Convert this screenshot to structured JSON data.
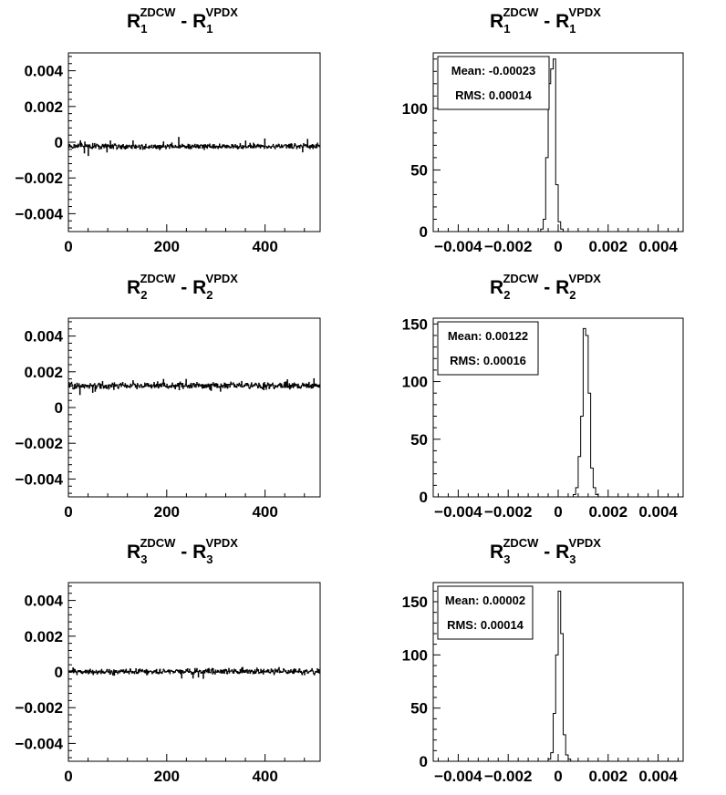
{
  "chart_data": [
    {
      "type": "line",
      "title": {
        "base": "R",
        "sub": "1",
        "sup": "ZDCW",
        "sep": " - ",
        "base2": "R",
        "sub2": "1",
        "sup2": "VPDX"
      },
      "xlim": [
        0,
        512
      ],
      "ylim": [
        -0.005,
        0.005
      ],
      "xticks": [
        0,
        200,
        400
      ],
      "xtick_labels": [
        "0",
        "200",
        "400"
      ],
      "yticks": [
        -0.004,
        -0.002,
        0,
        0.002,
        0.004
      ],
      "ytick_labels": [
        "−0.004",
        "−0.002",
        "0",
        "0.002",
        "0.004"
      ],
      "series": [
        {
          "mean": -0.00023,
          "noise": 0.00014
        }
      ]
    },
    {
      "type": "histogram",
      "title": {
        "base": "R",
        "sub": "1",
        "sup": "ZDCW",
        "sep": " - ",
        "base2": "R",
        "sub2": "1",
        "sup2": "VPDX"
      },
      "xlim": [
        -0.005,
        0.005
      ],
      "ylim": [
        0,
        145
      ],
      "xticks": [
        -0.004,
        -0.002,
        0,
        0.002,
        0.004
      ],
      "xtick_labels": [
        "−0.004",
        "−0.002",
        "0",
        "0.002",
        "0.004"
      ],
      "yticks": [
        0,
        50,
        100
      ],
      "ytick_labels": [
        "0",
        "50",
        "100"
      ],
      "bin_width": 0.0001,
      "bins": [
        [
          -0.0007,
          2
        ],
        [
          -0.0006,
          10
        ],
        [
          -0.0005,
          60
        ],
        [
          -0.0004,
          120
        ],
        [
          -0.0003,
          132
        ],
        [
          -0.0002,
          140
        ],
        [
          -0.0001,
          38
        ],
        [
          0.0,
          8
        ],
        [
          0.0001,
          2
        ]
      ],
      "stats": {
        "mean_label": "Mean: -0.00023",
        "rms_label": "RMS: 0.00014"
      }
    },
    {
      "type": "line",
      "title": {
        "base": "R",
        "sub": "2",
        "sup": "ZDCW",
        "sep": " - ",
        "base2": "R",
        "sub2": "2",
        "sup2": "VPDX"
      },
      "xlim": [
        0,
        512
      ],
      "ylim": [
        -0.005,
        0.005
      ],
      "xticks": [
        0,
        200,
        400
      ],
      "xtick_labels": [
        "0",
        "200",
        "400"
      ],
      "yticks": [
        -0.004,
        -0.002,
        0,
        0.002,
        0.004
      ],
      "ytick_labels": [
        "−0.004",
        "−0.002",
        "0",
        "0.002",
        "0.004"
      ],
      "series": [
        {
          "mean": 0.00122,
          "noise": 0.00016
        }
      ]
    },
    {
      "type": "histogram",
      "title": {
        "base": "R",
        "sub": "2",
        "sup": "ZDCW",
        "sep": " - ",
        "base2": "R",
        "sub2": "2",
        "sup2": "VPDX"
      },
      "xlim": [
        -0.005,
        0.005
      ],
      "ylim": [
        0,
        155
      ],
      "xticks": [
        -0.004,
        -0.002,
        0,
        0.002,
        0.004
      ],
      "xtick_labels": [
        "−0.004",
        "−0.002",
        "0",
        "0.002",
        "0.004"
      ],
      "yticks": [
        0,
        50,
        100,
        150
      ],
      "ytick_labels": [
        "0",
        "50",
        "100",
        "150"
      ],
      "bin_width": 0.0001,
      "bins": [
        [
          0.0006,
          2
        ],
        [
          0.0007,
          8
        ],
        [
          0.0008,
          35
        ],
        [
          0.0009,
          70
        ],
        [
          0.001,
          146
        ],
        [
          0.0011,
          140
        ],
        [
          0.0012,
          90
        ],
        [
          0.0013,
          25
        ],
        [
          0.0014,
          8
        ],
        [
          0.0015,
          2
        ]
      ],
      "stats": {
        "mean_label": "Mean: 0.00122",
        "rms_label": "RMS: 0.00016"
      }
    },
    {
      "type": "line",
      "title": {
        "base": "R",
        "sub": "3",
        "sup": "ZDCW",
        "sep": " - ",
        "base2": "R",
        "sub2": "3",
        "sup2": "VPDX"
      },
      "xlim": [
        0,
        512
      ],
      "ylim": [
        -0.005,
        0.005
      ],
      "xticks": [
        0,
        200,
        400
      ],
      "xtick_labels": [
        "0",
        "200",
        "400"
      ],
      "yticks": [
        -0.004,
        -0.002,
        0,
        0.002,
        0.004
      ],
      "ytick_labels": [
        "−0.004",
        "−0.002",
        "0",
        "0.002",
        "0.004"
      ],
      "series": [
        {
          "mean": 2e-05,
          "noise": 0.00014
        }
      ]
    },
    {
      "type": "histogram",
      "title": {
        "base": "R",
        "sub": "3",
        "sup": "ZDCW",
        "sep": " - ",
        "base2": "R",
        "sub2": "3",
        "sup2": "VPDX"
      },
      "xlim": [
        -0.005,
        0.005
      ],
      "ylim": [
        0,
        168
      ],
      "xticks": [
        -0.004,
        -0.002,
        0,
        0.002,
        0.004
      ],
      "xtick_labels": [
        "−0.004",
        "−0.002",
        "0",
        "0.002",
        "0.004"
      ],
      "yticks": [
        0,
        50,
        100,
        150
      ],
      "ytick_labels": [
        "0",
        "50",
        "100",
        "150"
      ],
      "bin_width": 0.0001,
      "bins": [
        [
          -0.0004,
          2
        ],
        [
          -0.0003,
          8
        ],
        [
          -0.0002,
          45
        ],
        [
          -0.0001,
          100
        ],
        [
          0.0,
          160
        ],
        [
          0.0001,
          120
        ],
        [
          0.0002,
          25
        ],
        [
          0.0003,
          6
        ],
        [
          0.0004,
          2
        ]
      ],
      "stats": {
        "mean_label": "Mean: 0.00002",
        "rms_label": "RMS: 0.00014"
      }
    }
  ]
}
